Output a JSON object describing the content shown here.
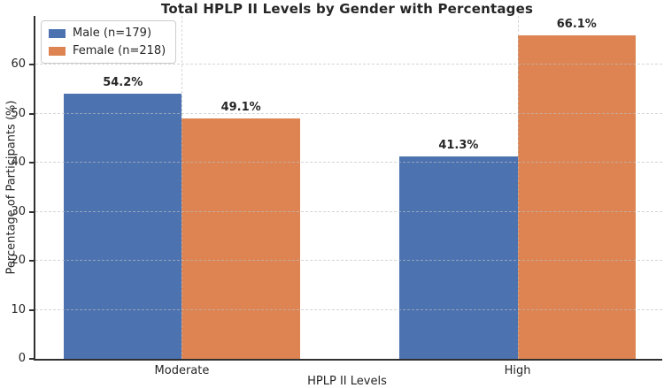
{
  "chart_data": {
    "type": "bar",
    "title": "Total HPLP II Levels by Gender with Percentages",
    "xlabel": "HPLP II Levels",
    "ylabel": "Percentage of Participants (%)",
    "categories": [
      "Moderate",
      "High"
    ],
    "series": [
      {
        "name": "Male (n=179)",
        "color": "#4c72b0",
        "values": [
          54.2,
          41.3
        ]
      },
      {
        "name": "Female (n=218)",
        "color": "#dd8452",
        "values": [
          49.1,
          66.1
        ]
      }
    ],
    "value_labels": [
      [
        "54.2%",
        "41.3%"
      ],
      [
        "49.1%",
        "66.1%"
      ]
    ],
    "yticks": [
      0,
      10,
      20,
      30,
      40,
      50,
      60
    ],
    "ylim": [
      0,
      70
    ],
    "grid": true,
    "grid_style": "dashed",
    "legend_position": "upper-left",
    "colors": {
      "male": "#4c72b0",
      "female": "#dd8452",
      "grid": "#cccccc",
      "spine": "#303030",
      "text": "#262626"
    }
  }
}
